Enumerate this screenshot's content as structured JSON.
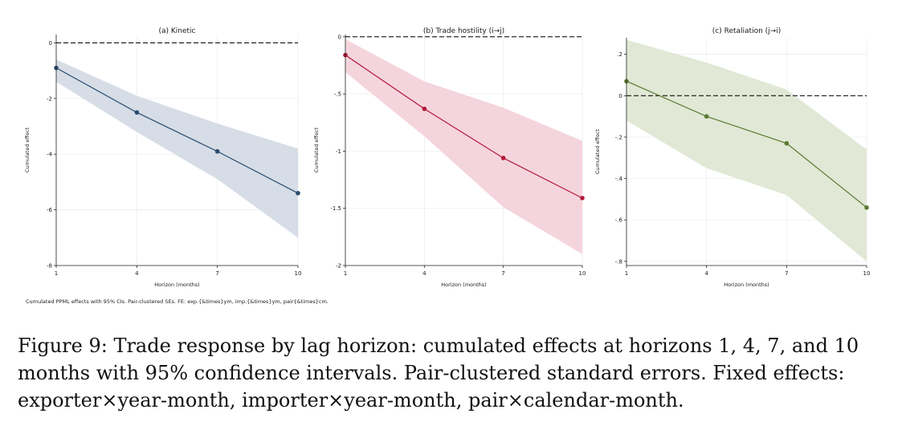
{
  "note": "Cumulated PPML effects with 95% CIs. Pair-clustered SEs. FE: exp.{&times}ym, imp.{&times}ym, pair{&times}cm.",
  "caption": {
    "label": "Figure 9:",
    "text": "Trade response by lag horizon: cumulated effects at horizons 1, 4, 7, and 10 months with 95% confidence intervals. Pair-clustered standard errors. Fixed effects: exporter×year-month, importer×year-month, pair×calendar-month."
  },
  "chart_data": [
    {
      "type": "line",
      "title": "(a) Kinetic",
      "xlabel": "Horizon (months)",
      "ylabel": "Cumulated effect",
      "x": [
        1,
        4,
        7,
        10
      ],
      "xticks": [
        "1",
        "4",
        "7",
        "10"
      ],
      "ylim": [
        -8,
        0.3
      ],
      "yticks": [
        0,
        -2,
        -4,
        -6,
        -8
      ],
      "ytick_labels": [
        "0",
        "-2",
        "-4",
        "-6",
        "-8"
      ],
      "series": [
        {
          "values": [
            -0.9,
            -2.5,
            -3.9,
            -5.4
          ],
          "ci_lower": [
            -1.4,
            -3.2,
            -4.9,
            -7.0
          ],
          "ci_upper": [
            -0.6,
            -1.9,
            -2.9,
            -3.8
          ]
        }
      ],
      "reference_line": 0,
      "colors": {
        "line": "#2b4c6f",
        "band": "#d6dde6"
      },
      "grid": true
    },
    {
      "type": "line",
      "title": "(b) Trade hostility (i→j)",
      "xlabel": "Horizon (months)",
      "ylabel": "Cumulated effect",
      "x": [
        1,
        4,
        7,
        10
      ],
      "xticks": [
        "1",
        "4",
        "7",
        "10"
      ],
      "ylim": [
        -2,
        0.02
      ],
      "yticks": [
        0,
        -0.5,
        -1,
        -1.5,
        -2
      ],
      "ytick_labels": [
        "0",
        "-.5",
        "-1",
        "-1.5",
        "-2"
      ],
      "series": [
        {
          "values": [
            -0.16,
            -0.63,
            -1.06,
            -1.41
          ],
          "ci_lower": [
            -0.31,
            -0.87,
            -1.49,
            -1.9
          ],
          "ci_upper": [
            -0.02,
            -0.39,
            -0.62,
            -0.91
          ]
        }
      ],
      "reference_line": 0,
      "colors": {
        "line": "#b2163a",
        "band": "#f5d5dd"
      },
      "grid": true
    },
    {
      "type": "line",
      "title": "(c) Retaliation (j→i)",
      "xlabel": "Horizon (months)",
      "ylabel": "Cumulated effect",
      "x": [
        1,
        4,
        7,
        10
      ],
      "xticks": [
        "1",
        "4",
        "7",
        "10"
      ],
      "ylim": [
        -0.82,
        0.28
      ],
      "yticks": [
        0.2,
        0,
        -0.2,
        -0.4,
        -0.6,
        -0.8
      ],
      "ytick_labels": [
        ".2",
        "0",
        "-.2",
        "-.4",
        "-.6",
        "-.8"
      ],
      "series": [
        {
          "values": [
            0.07,
            -0.1,
            -0.23,
            -0.54
          ],
          "ci_lower": [
            -0.12,
            -0.35,
            -0.48,
            -0.8
          ],
          "ci_upper": [
            0.27,
            0.16,
            0.03,
            -0.26
          ]
        }
      ],
      "reference_line": 0,
      "colors": {
        "line": "#5a7a33",
        "band": "#e1e8d6"
      },
      "grid": true
    }
  ]
}
